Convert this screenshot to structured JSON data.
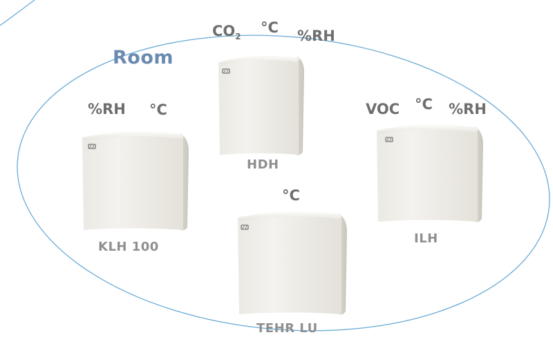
{
  "room_label": "Room",
  "devices": [
    {
      "name": "HDH",
      "measurements": {
        "co2": {
          "text": "CO",
          "subscript": "2"
        },
        "temp": "°C",
        "humidity": "%RH"
      }
    },
    {
      "name": "KLH 100",
      "measurements": {
        "humidity": "%RH",
        "temp": "°C"
      }
    },
    {
      "name": "ILH",
      "measurements": {
        "voc": "VOC",
        "temp": "°C",
        "humidity": "%RH"
      }
    },
    {
      "name": "TEHR LU",
      "measurements": {
        "temp": "°C"
      }
    }
  ],
  "colors": {
    "room_outline": "#6aaad6",
    "room_label": "#6a8ab0",
    "measurement_text": "#6e6e6e",
    "device_name_text": "#8f8f8f",
    "housing_light": "#f1efe9",
    "housing_shade": "#d9d6ce"
  },
  "icons": {
    "device_logo": "pd-logo-icon"
  }
}
